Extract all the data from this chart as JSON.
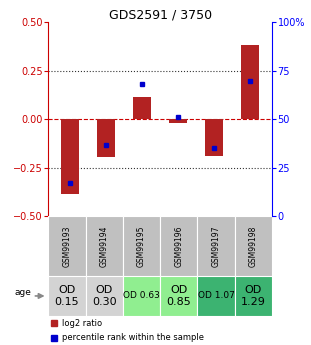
{
  "title": "GDS2591 / 3750",
  "samples": [
    "GSM99193",
    "GSM99194",
    "GSM99195",
    "GSM99196",
    "GSM99197",
    "GSM99198"
  ],
  "log2_ratio": [
    -0.385,
    -0.195,
    0.115,
    -0.02,
    -0.19,
    0.385
  ],
  "percentile_rank": [
    17,
    37,
    68,
    51,
    35,
    70
  ],
  "ylim_left": [
    -0.5,
    0.5
  ],
  "ylim_right": [
    0,
    100
  ],
  "yticks_left": [
    -0.5,
    -0.25,
    0,
    0.25,
    0.5
  ],
  "yticks_right": [
    0,
    25,
    50,
    75,
    100
  ],
  "bar_color": "#b22222",
  "dot_color": "#0000cd",
  "hline_color": "#cc0000",
  "dotted_color": "#333333",
  "age_labels": [
    "OD\n0.15",
    "OD\n0.30",
    "OD 0.63",
    "OD\n0.85",
    "OD 1.07",
    "OD\n1.29"
  ],
  "age_bg_colors": [
    "#d3d3d3",
    "#d3d3d3",
    "#90ee90",
    "#90ee90",
    "#3cb371",
    "#3cb371"
  ],
  "age_font_sizes": [
    8,
    8,
    6.5,
    8,
    6.5,
    8
  ],
  "gsm_bg_color": "#c0c0c0",
  "legend_red_label": "log2 ratio",
  "legend_blue_label": "percentile rank within the sample",
  "bar_width": 0.5
}
